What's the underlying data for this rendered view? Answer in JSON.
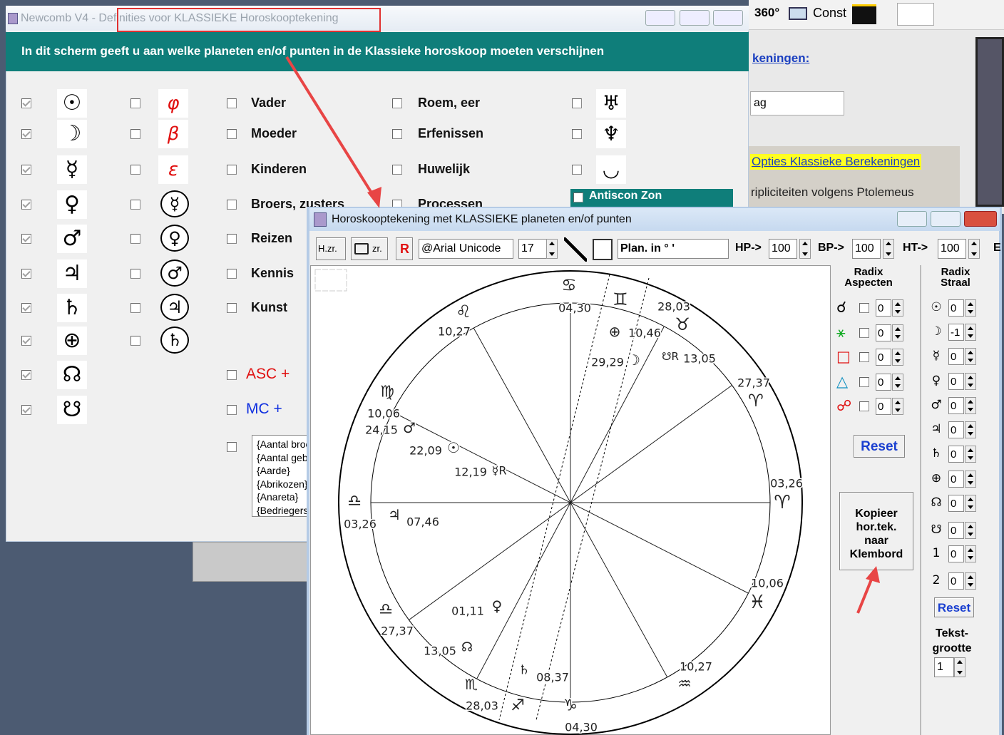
{
  "background_window": {
    "title": "Newcomb V4 - Definities voor KLASSIEKE Horoskooptekening",
    "banner": "In dit scherm geeft u aan welke planeten en/of punten in de Klassieke horoskoop moeten verschijnen",
    "column1": [
      "☉",
      "☽",
      "☿",
      "♀",
      "♂",
      "♃",
      "♄",
      "⊕",
      "☊",
      "☋"
    ],
    "column2": [
      "φ",
      "β",
      "ε",
      "☿",
      "♀",
      "♂",
      "♃",
      "♄"
    ],
    "column3": [
      "Vader",
      "Moeder",
      "Kinderen",
      "Broers, zusters",
      "Reizen",
      "Kennis",
      "Kunst"
    ],
    "asc": "ASC +",
    "mc": "MC +",
    "column4": [
      "Roem, eer",
      "Erfenissen",
      "Huwelijk",
      "Processen"
    ],
    "column5": [
      "♅",
      "♆",
      "◡"
    ],
    "antiscon": "Antiscon Zon",
    "listbox": [
      "{Aantal broers}",
      "{Aantal geboorten}",
      "{Aarde}",
      "{Abrikozen}",
      "{Anareta}",
      "{Bedriegers}"
    ]
  },
  "main_toolbar": {
    "degrees": "360°",
    "const": "Const"
  },
  "side_panel": {
    "heading": "keningen:",
    "input": "ag",
    "link": "Opties Klassieke Berekeningen",
    "option": "ripliciteiten volgens Ptolemeus"
  },
  "chart_window": {
    "title": "Horoskooptekening met KLASSIEKE planeten en/of punten",
    "toolbar": {
      "hzr": "H.zr.",
      "zr": "zr.",
      "r": "R",
      "font": "@Arial Unicode",
      "size": 17,
      "plan": "Plan. in ° '",
      "hp": "HP->",
      "hp_value": 100,
      "bp": "BP->",
      "bp_value": 100,
      "ht": "HT->",
      "ht_value": 100,
      "e": "E"
    },
    "labels": [
      "♋",
      "♊",
      "♌",
      "♉",
      "♍",
      "♈",
      "♎",
      "♈",
      "♓",
      "♎",
      "♏",
      "♐",
      "♑",
      "♒",
      "04,30",
      "28,03",
      "10,27",
      "27,37",
      "10,06",
      "03,26",
      "03,26",
      "10,06",
      "27,37",
      "10,27",
      "28,03",
      "04,30",
      "⊕",
      "10,46",
      "29,29",
      "☽",
      "☋R",
      "13,05",
      "24,15",
      "♂",
      "22,09",
      "☉",
      "12,19",
      "☿R",
      "♃",
      "07,46",
      "01,11",
      "♀",
      "13,05",
      "☊",
      "♄",
      "08,37"
    ],
    "aspects": {
      "heading": "Radix Aspecten",
      "rows": [
        {
          "glyph": "☌",
          "value": 0
        },
        {
          "glyph": "⚹",
          "value": 0
        },
        {
          "glyph": "□",
          "value": 0
        },
        {
          "glyph": "△",
          "value": 0
        },
        {
          "glyph": "☍",
          "value": 0
        }
      ],
      "reset": "Reset"
    },
    "copy": "Kopieer hor.tek. naar Klembord",
    "rays": {
      "heading": "Radix Straal",
      "rows": [
        {
          "glyph": "☉",
          "value": 0
        },
        {
          "glyph": "☽",
          "value": -1
        },
        {
          "glyph": "☿",
          "value": 0
        },
        {
          "glyph": "♀",
          "value": 0
        },
        {
          "glyph": "♂",
          "value": 0
        },
        {
          "glyph": "♃",
          "value": 0
        },
        {
          "glyph": "♄",
          "value": 0
        },
        {
          "glyph": "⊕",
          "value": 0
        },
        {
          "glyph": "☊",
          "value": 0
        },
        {
          "glyph": "☋",
          "value": 0
        },
        {
          "glyph": "1",
          "value": 0
        },
        {
          "glyph": "2",
          "value": 0
        }
      ],
      "reset": "Reset",
      "text_size_label": "Tekst-grootte",
      "text_size": 1
    }
  }
}
